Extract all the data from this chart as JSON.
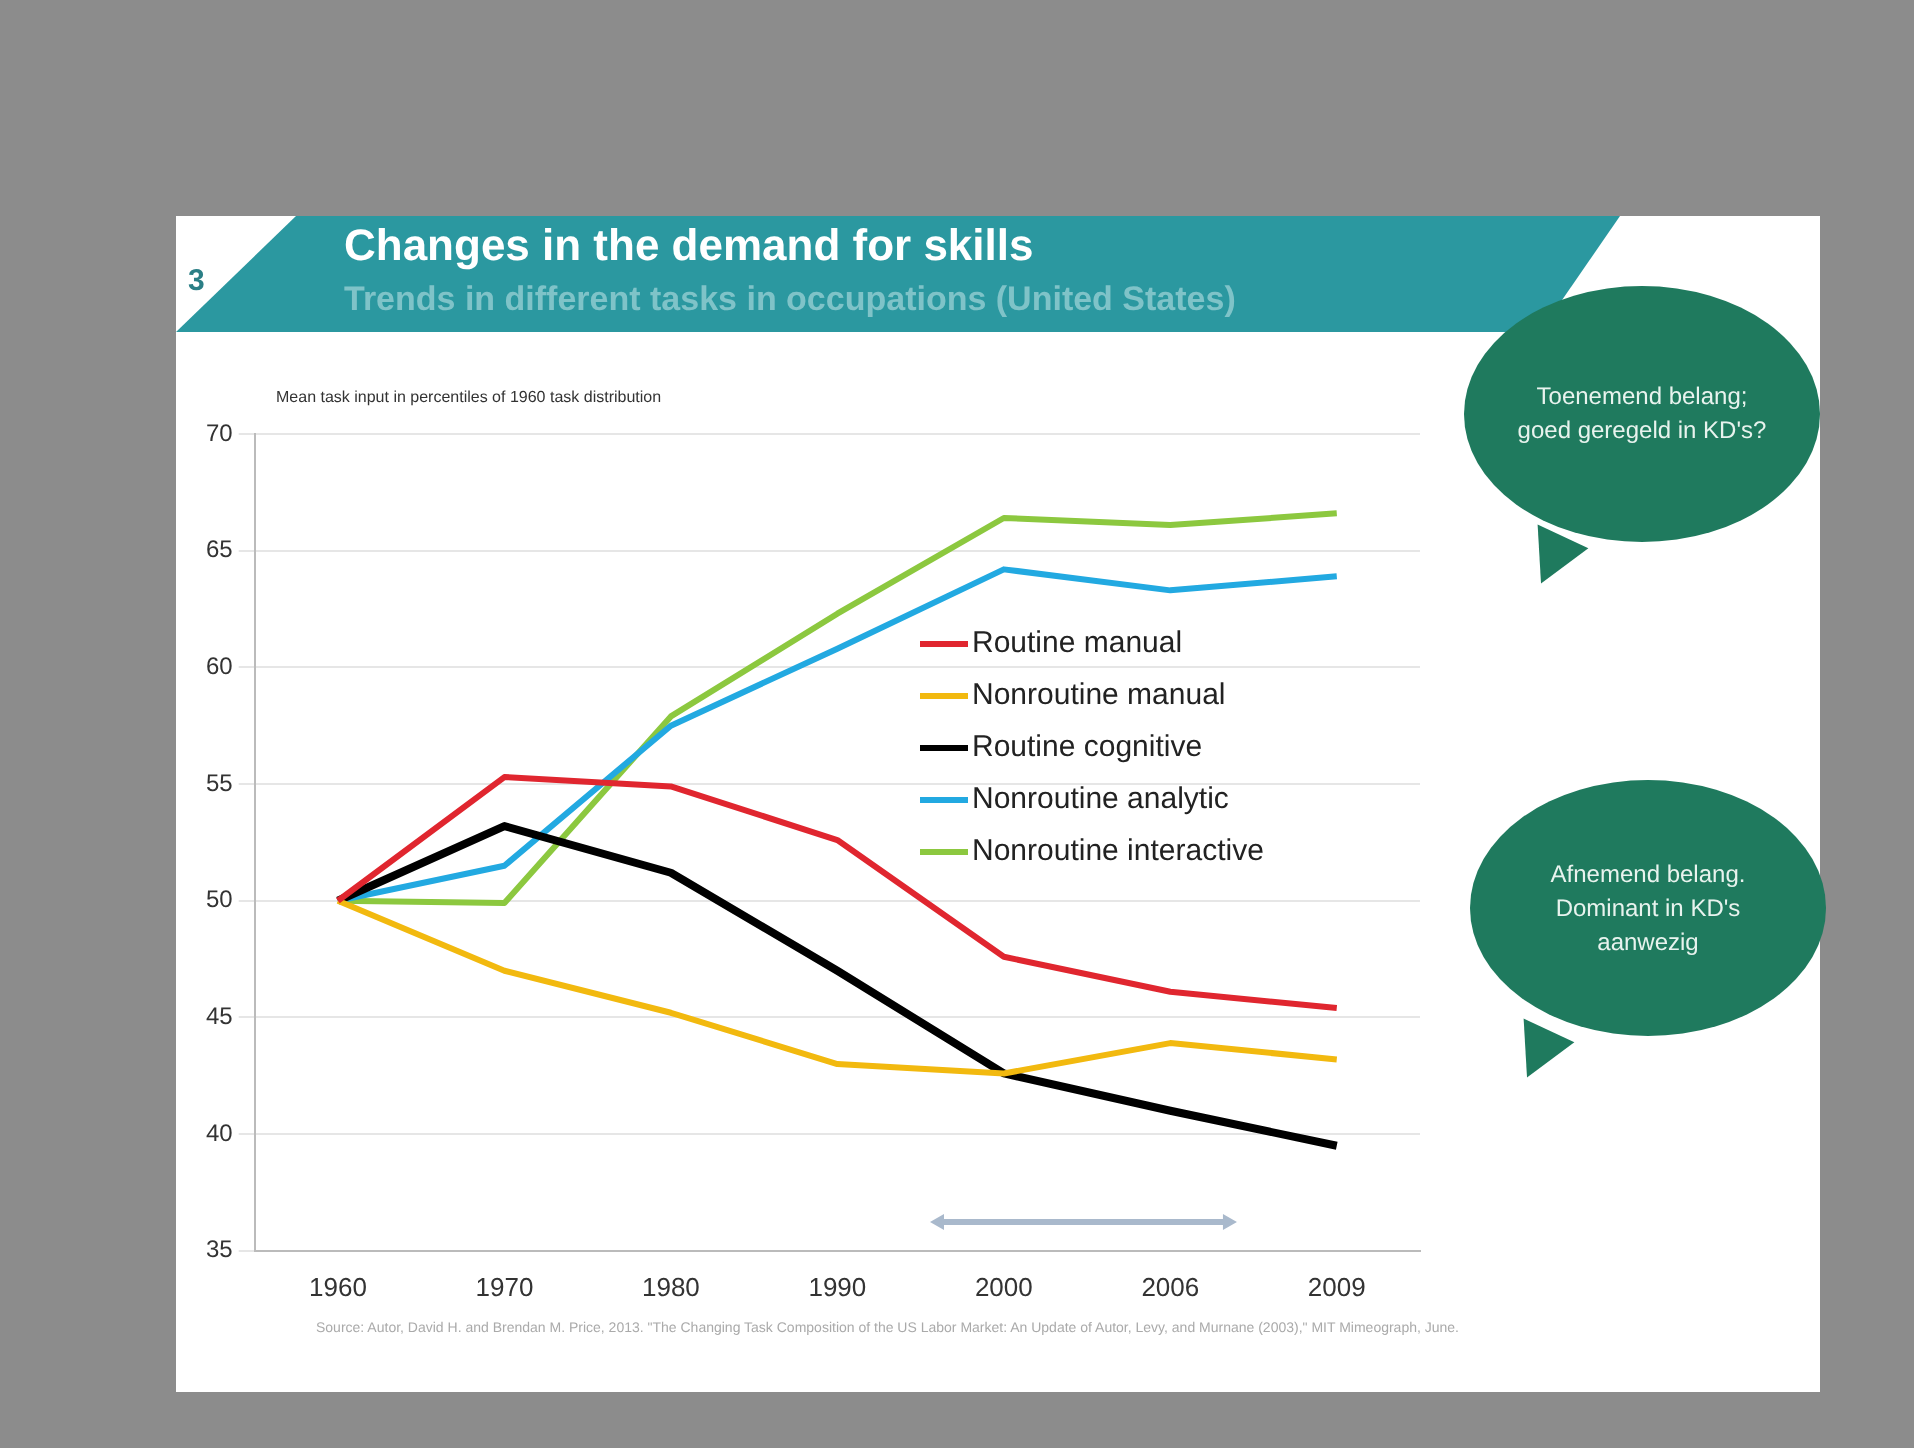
{
  "chart_data": {
    "type": "line",
    "title": "Changes in the demand for skills",
    "subtitle": "Trends in different tasks in occupations (United States)",
    "ylabel": "Mean task input in percentiles of 1960 task distribution",
    "categories": [
      "1960",
      "1970",
      "1980",
      "1990",
      "2000",
      "2006",
      "2009"
    ],
    "series": [
      {
        "name": "Routine manual",
        "color": "#e0262f",
        "values": [
          50,
          55.3,
          54.9,
          52.6,
          47.6,
          46.1,
          45.4
        ]
      },
      {
        "name": "Nonroutine manual",
        "color": "#f2b90f",
        "values": [
          50,
          47,
          45.2,
          43,
          42.6,
          43.9,
          43.2
        ]
      },
      {
        "name": "Routine cognitive",
        "color": "#000000",
        "values": [
          50,
          53.2,
          51.2,
          47,
          42.6,
          41,
          39.5
        ]
      },
      {
        "name": "Nonroutine analytic",
        "color": "#22a9e1",
        "values": [
          50,
          51.5,
          57.5,
          60.8,
          64.2,
          63.3,
          63.9
        ]
      },
      {
        "name": "Nonroutine interactive",
        "color": "#8cc83f",
        "values": [
          50,
          49.9,
          57.9,
          62.3,
          66.4,
          66.1,
          66.6
        ]
      }
    ],
    "ylim": [
      35,
      70
    ],
    "yticks": [
      35,
      40,
      45,
      50,
      55,
      60,
      65,
      70
    ],
    "grid": "y",
    "legend": "right",
    "marker": "none",
    "line_style": "solid",
    "annotations": [
      "3",
      "Toenemend belang; goed geregeld  in KD's?",
      "Afnemend belang. Dominant in KD's aanwezig",
      "Source: Autor, David H. and Brendan M. Price, 2013. \"The Changing Task Composition of the US Labor Market: An Update of Autor, Levy, and Murnane (2003),\" MIT Mimeograph, June."
    ]
  }
}
